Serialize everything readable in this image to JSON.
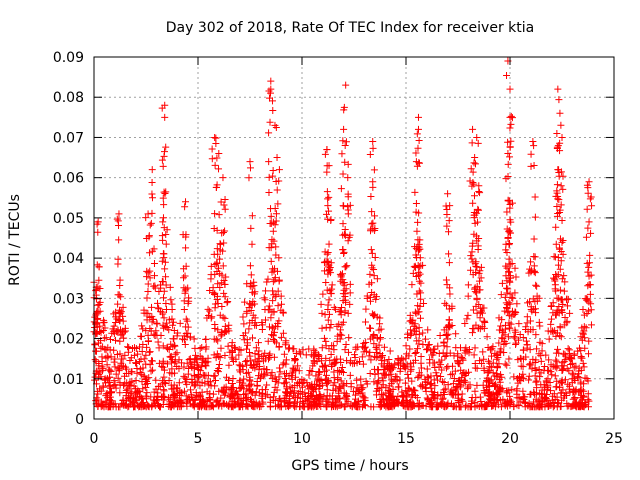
{
  "chart_data": {
    "type": "scatter",
    "title": "Day 302 of 2018, Rate Of TEC Index for receiver ktia",
    "xlabel": "GPS time / hours",
    "ylabel": "ROTI / TECUs",
    "xlim": [
      0,
      25
    ],
    "ylim": [
      0,
      0.09
    ],
    "xticks": [
      0,
      5,
      10,
      15,
      20,
      25
    ],
    "yticks": [
      0,
      0.01,
      0.02,
      0.03,
      0.04,
      0.05,
      0.06,
      0.07,
      0.08,
      0.09
    ],
    "xtick_labels": [
      "0",
      "5",
      "10",
      "15",
      "20",
      "25"
    ],
    "ytick_labels": [
      "0",
      "0.01",
      "0.02",
      "0.03",
      "0.04",
      "0.05",
      "0.06",
      "0.07",
      "0.08",
      "0.09"
    ],
    "grid": true,
    "marker": "+",
    "color": "#ff0000",
    "series": [
      {
        "name": "ROTI",
        "x_range": [
          0,
          23.8
        ],
        "typical_band": [
          0.003,
          0.03
        ],
        "notable_points": [
          {
            "x": 0.0,
            "y": 0.034
          },
          {
            "x": 0.2,
            "y": 0.049
          },
          {
            "x": 1.2,
            "y": 0.051
          },
          {
            "x": 2.6,
            "y": 0.051
          },
          {
            "x": 2.8,
            "y": 0.062
          },
          {
            "x": 3.4,
            "y": 0.078
          },
          {
            "x": 3.4,
            "y": 0.075
          },
          {
            "x": 4.4,
            "y": 0.054
          },
          {
            "x": 5.8,
            "y": 0.07
          },
          {
            "x": 6.0,
            "y": 0.066
          },
          {
            "x": 6.2,
            "y": 0.06
          },
          {
            "x": 7.5,
            "y": 0.064
          },
          {
            "x": 8.5,
            "y": 0.084
          },
          {
            "x": 8.5,
            "y": 0.082
          },
          {
            "x": 8.7,
            "y": 0.073
          },
          {
            "x": 8.8,
            "y": 0.065
          },
          {
            "x": 11.2,
            "y": 0.067
          },
          {
            "x": 11.3,
            "y": 0.063
          },
          {
            "x": 12.1,
            "y": 0.083
          },
          {
            "x": 12.0,
            "y": 0.072
          },
          {
            "x": 12.2,
            "y": 0.06
          },
          {
            "x": 13.4,
            "y": 0.069
          },
          {
            "x": 13.4,
            "y": 0.059
          },
          {
            "x": 15.6,
            "y": 0.075
          },
          {
            "x": 15.6,
            "y": 0.072
          },
          {
            "x": 15.5,
            "y": 0.064
          },
          {
            "x": 17.0,
            "y": 0.056
          },
          {
            "x": 18.2,
            "y": 0.072
          },
          {
            "x": 18.4,
            "y": 0.07
          },
          {
            "x": 18.3,
            "y": 0.065
          },
          {
            "x": 18.5,
            "y": 0.058
          },
          {
            "x": 19.9,
            "y": 0.089
          },
          {
            "x": 20.0,
            "y": 0.082
          },
          {
            "x": 20.0,
            "y": 0.075
          },
          {
            "x": 19.9,
            "y": 0.066
          },
          {
            "x": 21.1,
            "y": 0.069
          },
          {
            "x": 22.3,
            "y": 0.082
          },
          {
            "x": 22.4,
            "y": 0.076
          },
          {
            "x": 22.5,
            "y": 0.07
          },
          {
            "x": 22.3,
            "y": 0.062
          },
          {
            "x": 23.8,
            "y": 0.059
          },
          {
            "x": 23.8,
            "y": 0.049
          }
        ]
      }
    ]
  }
}
